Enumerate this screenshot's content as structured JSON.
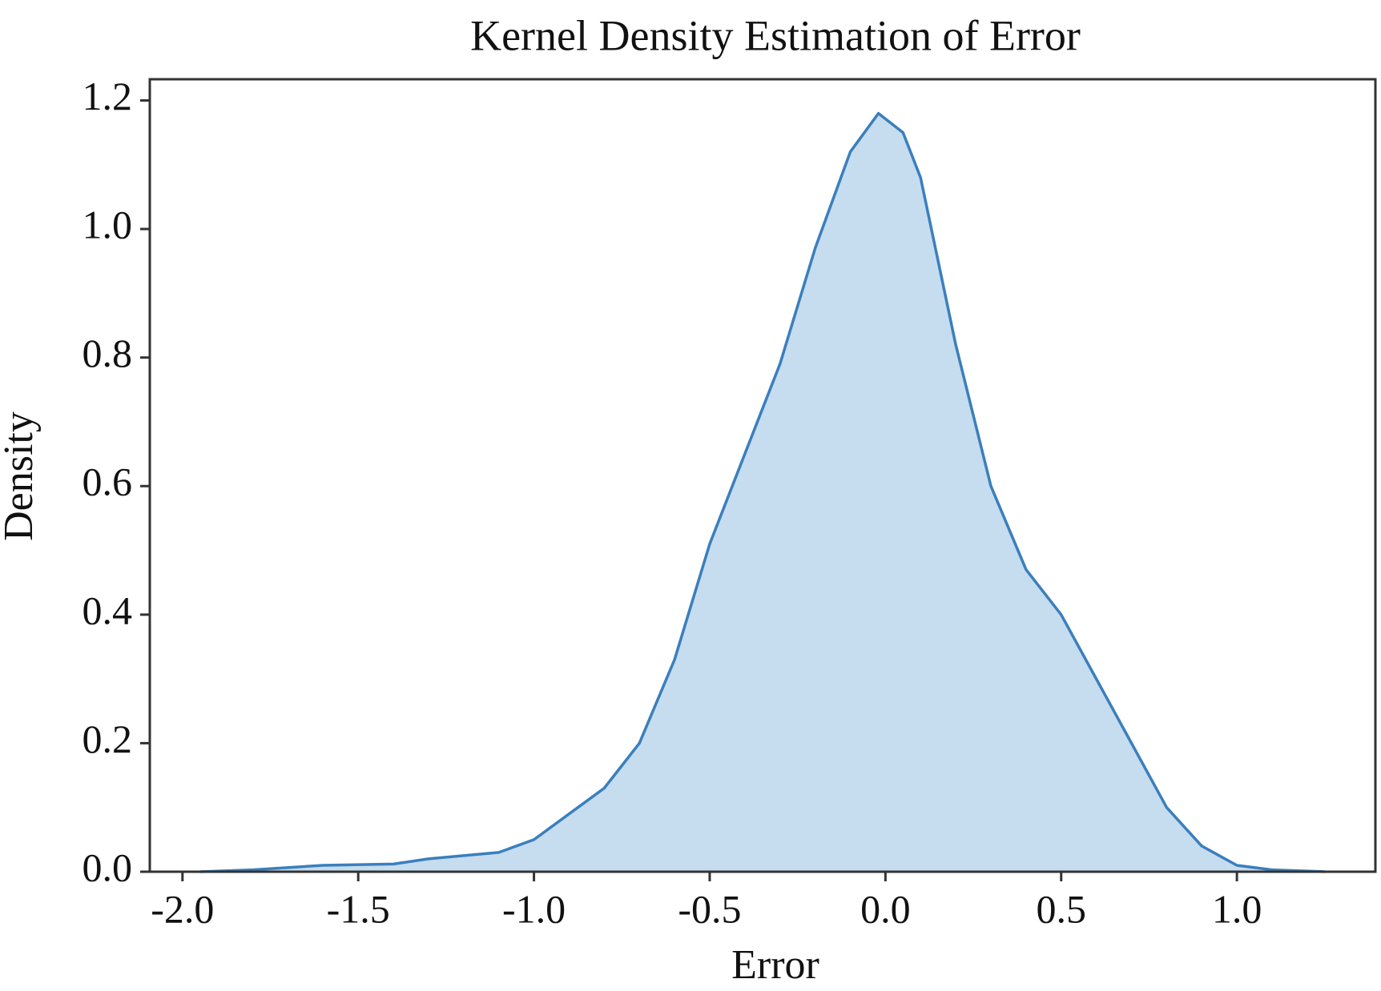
{
  "chart_data": {
    "type": "area",
    "title": "Kernel Density Estimation of Error",
    "x_label": "Error",
    "y_label": "Density",
    "x": [
      -1.95,
      -1.8,
      -1.6,
      -1.4,
      -1.3,
      -1.2,
      -1.1,
      -1.0,
      -0.9,
      -0.8,
      -0.7,
      -0.6,
      -0.5,
      -0.4,
      -0.3,
      -0.2,
      -0.1,
      -0.02,
      0.05,
      0.1,
      0.2,
      0.3,
      0.4,
      0.5,
      0.6,
      0.7,
      0.8,
      0.9,
      1.0,
      1.1,
      1.25
    ],
    "values": [
      0.0,
      0.003,
      0.01,
      0.012,
      0.02,
      0.025,
      0.03,
      0.05,
      0.09,
      0.13,
      0.2,
      0.33,
      0.51,
      0.65,
      0.79,
      0.97,
      1.12,
      1.18,
      1.15,
      1.08,
      0.82,
      0.6,
      0.47,
      0.4,
      0.3,
      0.2,
      0.1,
      0.04,
      0.01,
      0.003,
      0.0
    ],
    "color": "#3a7fbd",
    "fill_color": "#c6dcef",
    "xlim": [
      -2.093,
      1.394
    ],
    "ylim": [
      0,
      1.233
    ],
    "xticks": [
      {
        "value": -2.0,
        "label": "-2.0"
      },
      -1.5,
      {
        "value": -1.0,
        "label": "-1.0"
      },
      -0.5,
      {
        "value": 0.0,
        "label": "0.0"
      },
      0.5,
      {
        "value": 1.0,
        "label": "1.0"
      }
    ],
    "yticks": [
      {
        "value": 0.0,
        "label": "0.0"
      },
      0.2,
      0.4,
      0.6,
      0.8,
      {
        "value": 1.0,
        "label": "1.0"
      },
      1.2
    ]
  }
}
